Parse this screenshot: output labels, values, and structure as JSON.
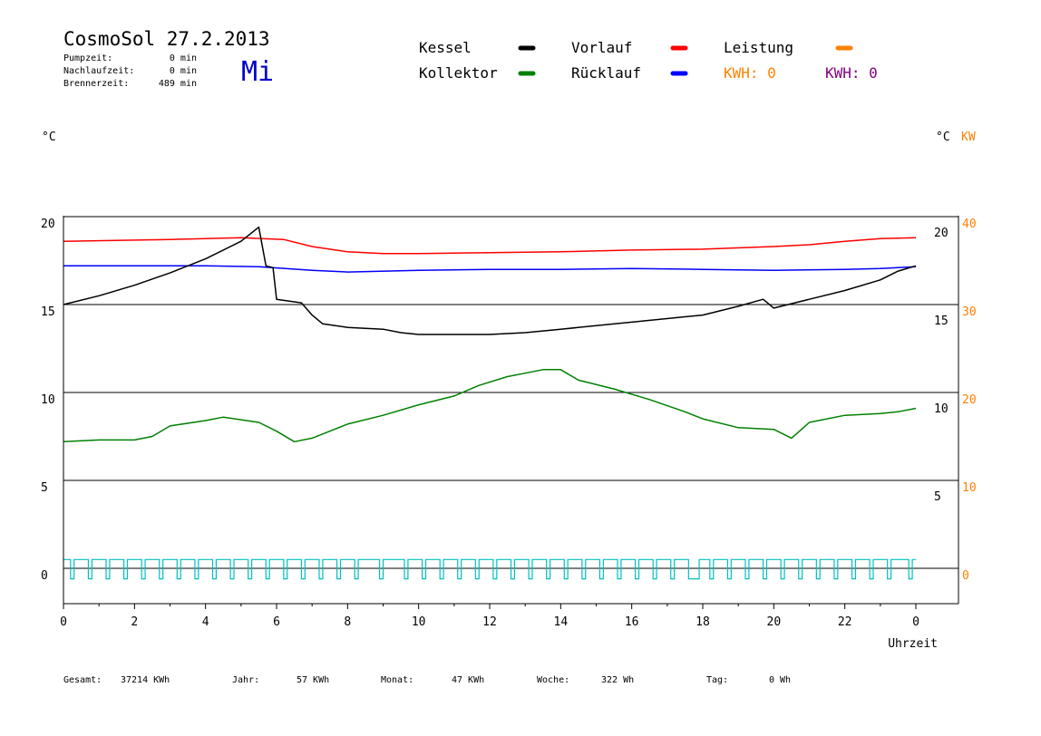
{
  "header": {
    "title": "CosmoSol 27.2.2013",
    "weekday": "Mi",
    "stats": [
      {
        "label": "Pumpzeit:",
        "value": "0 min"
      },
      {
        "label": "Nachlaufzeit:",
        "value": "0 min"
      },
      {
        "label": "Brennerzeit:",
        "value": "489 min"
      }
    ]
  },
  "legend": {
    "items": [
      {
        "label": "Kessel",
        "color": "#000000"
      },
      {
        "label": "Vorlauf",
        "color": "#ff0000"
      },
      {
        "label": "Leistung",
        "color": "#ff8000"
      },
      {
        "label": "Kollektor",
        "color": "#008000"
      },
      {
        "label": "Rücklauf",
        "color": "#0000ff"
      }
    ],
    "kwh": [
      {
        "label": "KWH: 0",
        "color": "#ff8000"
      },
      {
        "label": "KWH: 0",
        "color": "#800080"
      }
    ]
  },
  "axes": {
    "left_unit": "°C",
    "right_unit": "°C",
    "right_unit2": "KW",
    "right_unit2_color": "#ff8000",
    "x_label": "Uhrzeit",
    "pump_color": "#00c0c0"
  },
  "footer": {
    "items": [
      {
        "label": "Gesamt:",
        "value": "37214 KWh"
      },
      {
        "label": "Jahr:",
        "value": "57 KWh"
      },
      {
        "label": "Monat:",
        "value": "47 KWh"
      },
      {
        "label": "Woche:",
        "value": "322 Wh"
      },
      {
        "label": "Tag:",
        "value": "0 Wh"
      }
    ]
  },
  "chart_data": {
    "type": "line",
    "xlabel": "Uhrzeit",
    "x_ticks": [
      "0",
      "2",
      "4",
      "6",
      "8",
      "10",
      "12",
      "14",
      "16",
      "18",
      "20",
      "22",
      "0"
    ],
    "xlim": [
      0,
      24
    ],
    "y_left": {
      "ticks": [
        0,
        5,
        10,
        15,
        20
      ],
      "ylim": [
        -1.5,
        20.5
      ],
      "label": "°C"
    },
    "y_right_inner": {
      "ticks": [
        5,
        10,
        15,
        20
      ]
    },
    "y_right_kw": {
      "ticks": [
        0,
        10,
        20,
        30,
        40
      ],
      "label": "KW"
    },
    "grid": "horizontal",
    "series": [
      {
        "name": "Vorlauf",
        "color": "#ff0000",
        "points": [
          [
            0,
            18.6
          ],
          [
            3,
            18.7
          ],
          [
            5,
            18.8
          ],
          [
            6.2,
            18.7
          ],
          [
            7,
            18.3
          ],
          [
            8,
            18.0
          ],
          [
            9,
            17.9
          ],
          [
            10,
            17.9
          ],
          [
            12,
            17.95
          ],
          [
            14,
            18.0
          ],
          [
            16,
            18.1
          ],
          [
            18,
            18.15
          ],
          [
            20,
            18.3
          ],
          [
            21,
            18.4
          ],
          [
            22,
            18.6
          ],
          [
            23,
            18.75
          ],
          [
            24,
            18.8
          ]
        ]
      },
      {
        "name": "Rücklauf",
        "color": "#0000ff",
        "points": [
          [
            0,
            17.2
          ],
          [
            2,
            17.2
          ],
          [
            4,
            17.2
          ],
          [
            5.5,
            17.15
          ],
          [
            7,
            16.95
          ],
          [
            8,
            16.85
          ],
          [
            10,
            16.95
          ],
          [
            12,
            17.0
          ],
          [
            14,
            17.0
          ],
          [
            16,
            17.05
          ],
          [
            18,
            17.0
          ],
          [
            20,
            16.95
          ],
          [
            22,
            17.0
          ],
          [
            23,
            17.05
          ],
          [
            24,
            17.15
          ]
        ]
      },
      {
        "name": "Kessel",
        "color": "#000000",
        "points": [
          [
            0,
            15.0
          ],
          [
            1,
            15.5
          ],
          [
            2,
            16.1
          ],
          [
            3,
            16.8
          ],
          [
            4,
            17.6
          ],
          [
            5,
            18.6
          ],
          [
            5.5,
            19.4
          ],
          [
            5.7,
            17.2
          ],
          [
            5.9,
            17.1
          ],
          [
            6.0,
            15.3
          ],
          [
            6.7,
            15.1
          ],
          [
            7.0,
            14.4
          ],
          [
            7.3,
            13.9
          ],
          [
            8,
            13.7
          ],
          [
            9,
            13.6
          ],
          [
            9.5,
            13.4
          ],
          [
            10,
            13.3
          ],
          [
            12,
            13.3
          ],
          [
            13,
            13.4
          ],
          [
            14,
            13.6
          ],
          [
            16,
            14.0
          ],
          [
            18,
            14.4
          ],
          [
            19,
            14.9
          ],
          [
            19.7,
            15.3
          ],
          [
            20,
            14.8
          ],
          [
            21,
            15.3
          ],
          [
            22,
            15.8
          ],
          [
            23,
            16.4
          ],
          [
            23.5,
            16.9
          ],
          [
            24,
            17.2
          ]
        ]
      },
      {
        "name": "Kollektor",
        "color": "#008000",
        "points": [
          [
            0,
            7.2
          ],
          [
            1,
            7.3
          ],
          [
            2,
            7.3
          ],
          [
            2.5,
            7.5
          ],
          [
            3,
            8.1
          ],
          [
            4,
            8.4
          ],
          [
            4.5,
            8.6
          ],
          [
            5.5,
            8.3
          ],
          [
            6,
            7.8
          ],
          [
            6.5,
            7.2
          ],
          [
            7,
            7.4
          ],
          [
            8,
            8.2
          ],
          [
            9,
            8.7
          ],
          [
            10,
            9.3
          ],
          [
            11,
            9.8
          ],
          [
            11.7,
            10.4
          ],
          [
            12.5,
            10.9
          ],
          [
            13,
            11.1
          ],
          [
            13.5,
            11.3
          ],
          [
            14,
            11.3
          ],
          [
            14.5,
            10.7
          ],
          [
            15.5,
            10.2
          ],
          [
            16.5,
            9.6
          ],
          [
            17.5,
            8.9
          ],
          [
            18,
            8.5
          ],
          [
            19,
            8.0
          ],
          [
            20,
            7.9
          ],
          [
            20.5,
            7.4
          ],
          [
            21,
            8.3
          ],
          [
            22,
            8.7
          ],
          [
            23,
            8.8
          ],
          [
            23.5,
            8.9
          ],
          [
            24,
            9.1
          ]
        ]
      }
    ],
    "pump": {
      "name": "Pumpe",
      "color": "#00c0c0",
      "high": 0.5,
      "low": -0.6,
      "pulses": [
        [
          0.2,
          0.3
        ],
        [
          0.7,
          0.8
        ],
        [
          1.2,
          1.3
        ],
        [
          1.7,
          1.8
        ],
        [
          2.2,
          2.3
        ],
        [
          2.7,
          2.8
        ],
        [
          3.2,
          3.3
        ],
        [
          3.7,
          3.8
        ],
        [
          4.2,
          4.3
        ],
        [
          4.7,
          4.8
        ],
        [
          5.2,
          5.3
        ],
        [
          5.7,
          5.8
        ],
        [
          6.2,
          6.3
        ],
        [
          6.7,
          6.8
        ],
        [
          7.2,
          7.3
        ],
        [
          7.7,
          7.8
        ],
        [
          8.2,
          8.3
        ],
        [
          8.9,
          9.0
        ],
        [
          9.6,
          9.7
        ],
        [
          10.1,
          10.2
        ],
        [
          10.6,
          10.7
        ],
        [
          11.1,
          11.2
        ],
        [
          11.6,
          11.7
        ],
        [
          12.1,
          12.2
        ],
        [
          12.6,
          12.7
        ],
        [
          13.1,
          13.2
        ],
        [
          13.6,
          13.7
        ],
        [
          14.1,
          14.2
        ],
        [
          14.6,
          14.7
        ],
        [
          15.1,
          15.2
        ],
        [
          15.6,
          15.7
        ],
        [
          16.1,
          16.2
        ],
        [
          16.6,
          16.7
        ],
        [
          17.1,
          17.2
        ],
        [
          17.6,
          17.9
        ],
        [
          18.2,
          18.3
        ],
        [
          18.7,
          18.8
        ],
        [
          19.2,
          19.3
        ],
        [
          19.7,
          19.8
        ],
        [
          20.2,
          20.3
        ],
        [
          20.7,
          20.8
        ],
        [
          21.2,
          21.3
        ],
        [
          21.7,
          21.8
        ],
        [
          22.2,
          22.3
        ],
        [
          22.7,
          22.8
        ],
        [
          23.2,
          23.3
        ],
        [
          23.8,
          23.9
        ]
      ]
    }
  }
}
